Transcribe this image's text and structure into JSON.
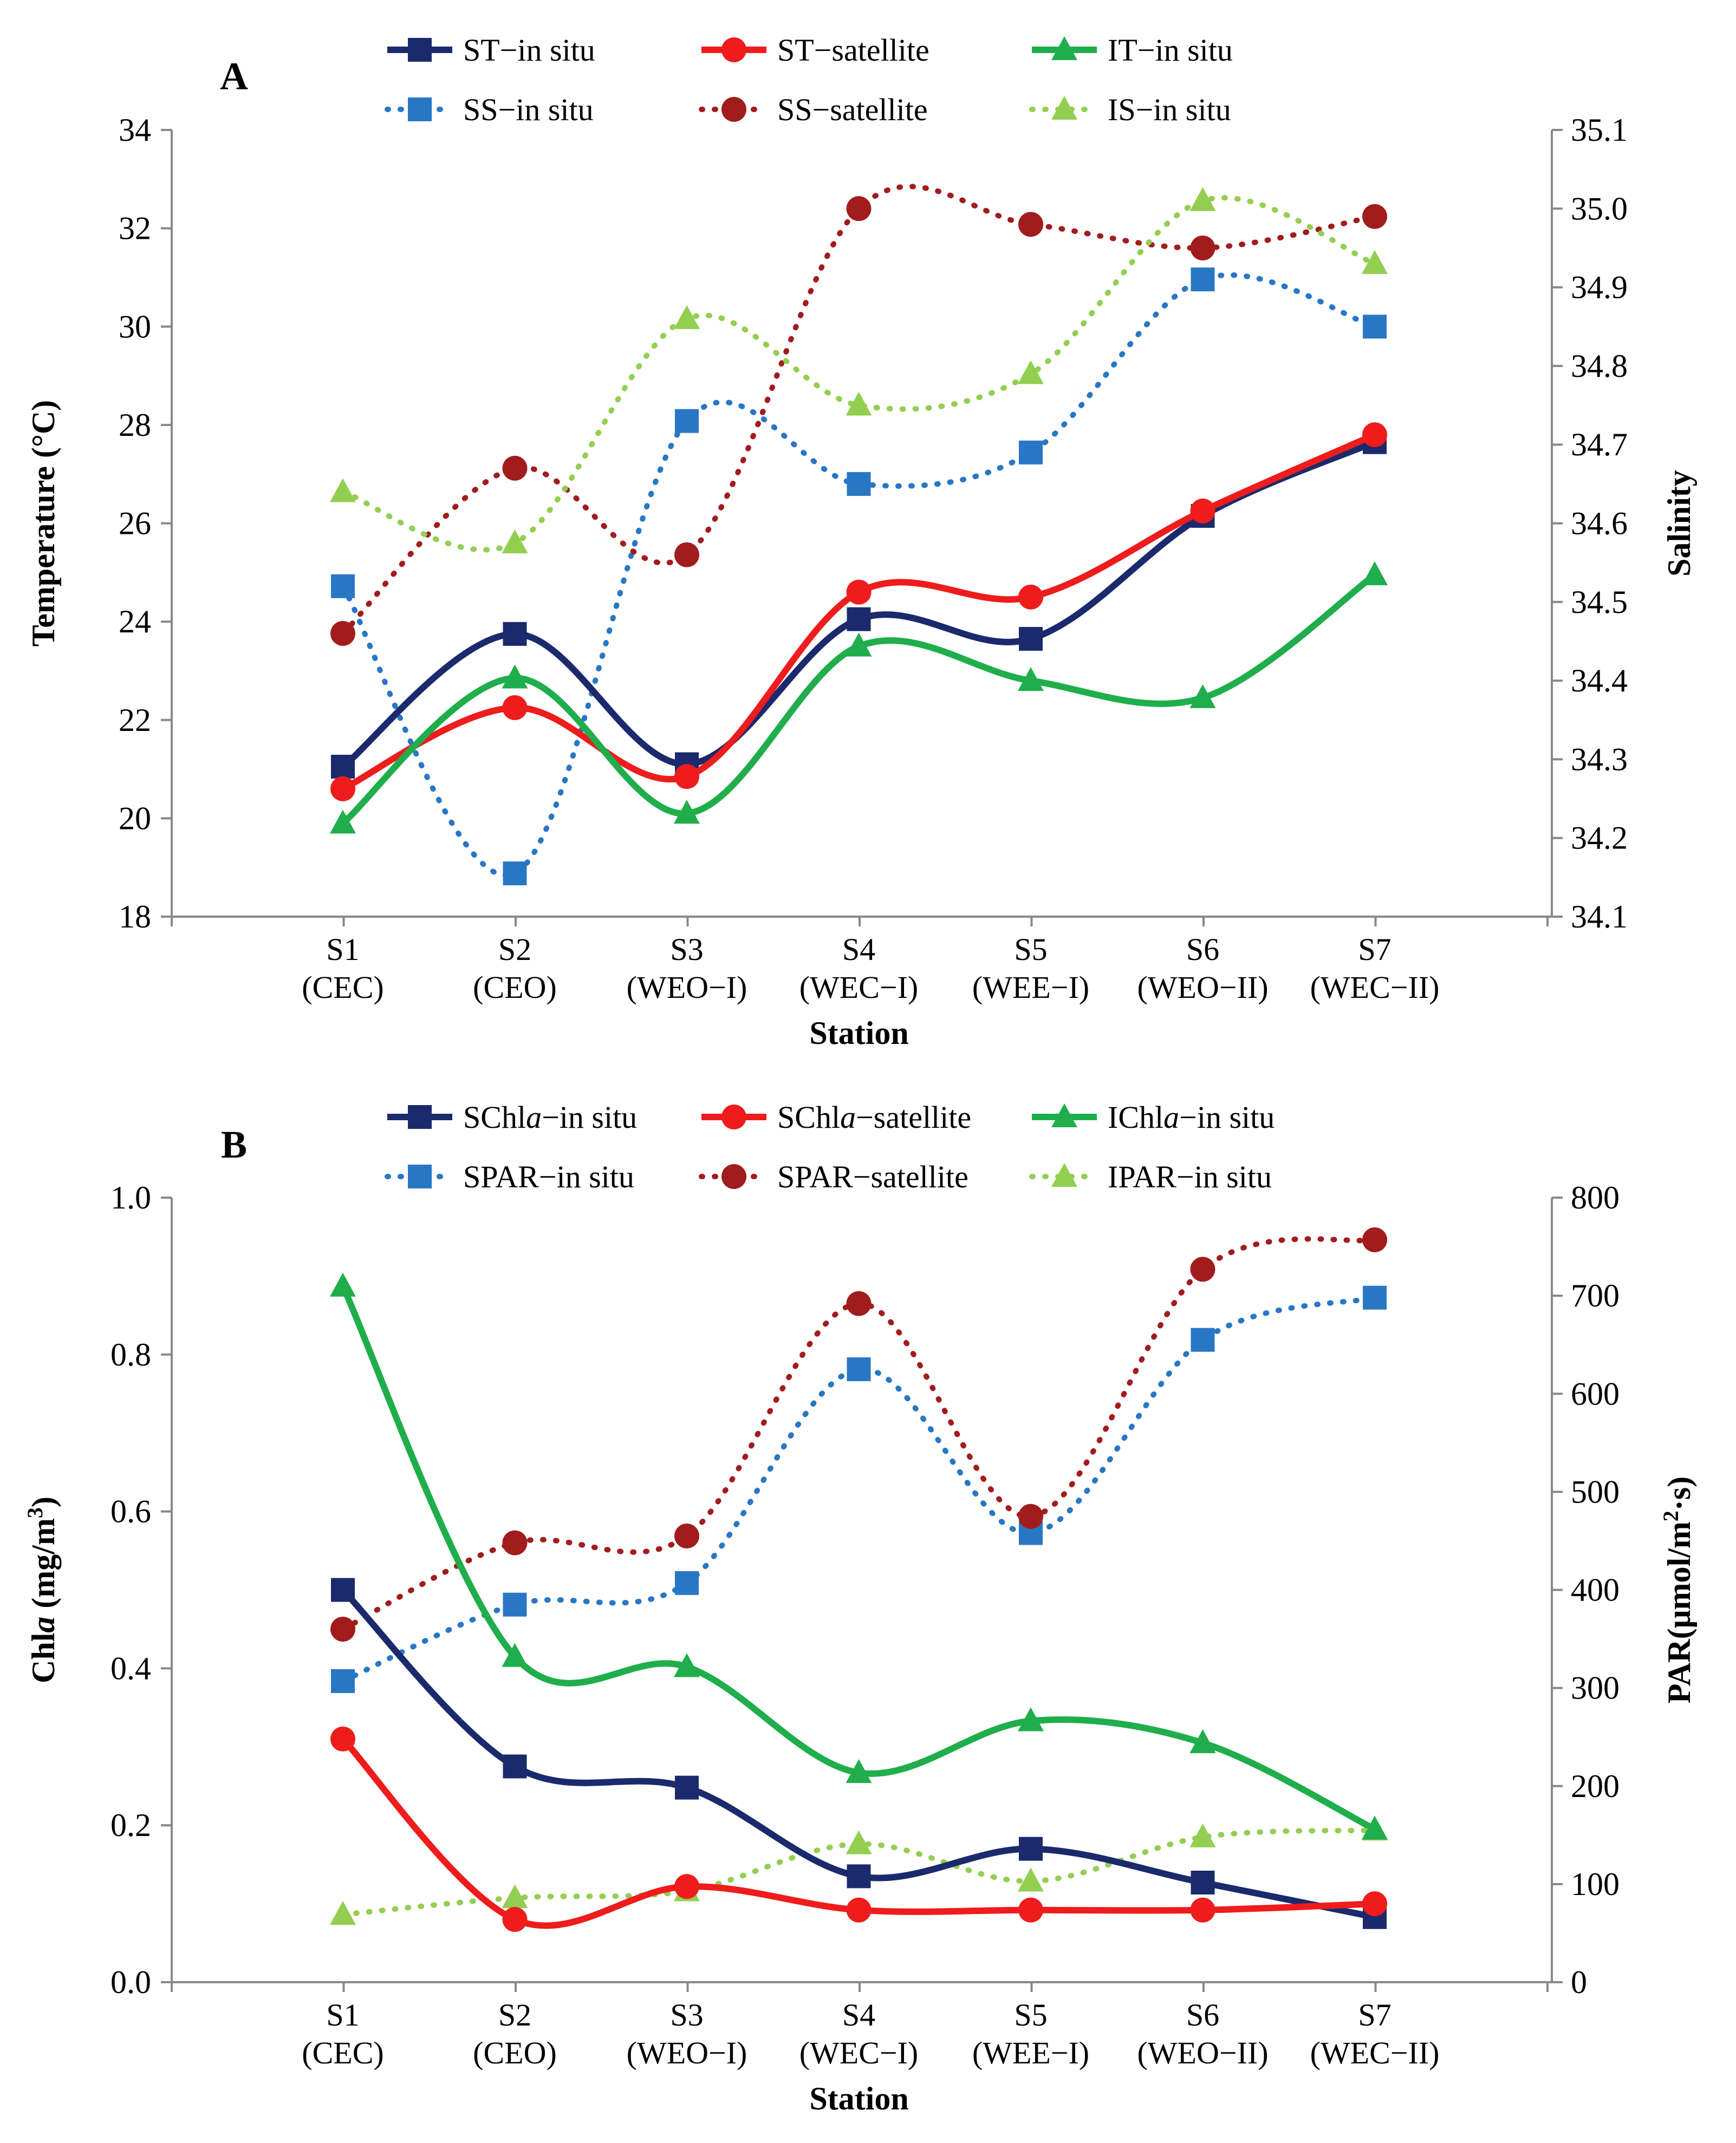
{
  "chart_data": [
    {
      "panel": "A",
      "type": "line",
      "xlabel": "Station",
      "ylabel": "Temperature (°C)",
      "y2label": "Salinity",
      "ylim": [
        18,
        34
      ],
      "yticks": [
        "18",
        "20",
        "22",
        "24",
        "26",
        "28",
        "30",
        "32",
        "34"
      ],
      "y2lim": [
        34.1,
        35.1
      ],
      "y2ticks": [
        "34.1",
        "34.2",
        "34.3",
        "34.4",
        "34.5",
        "34.6",
        "34.7",
        "34.8",
        "34.9",
        "35.0",
        "35.1"
      ],
      "categories": [
        "S1",
        "S2",
        "S3",
        "S4",
        "S5",
        "S6",
        "S7"
      ],
      "subcategories": [
        "(CEC)",
        "(CEO)",
        "(WEO−I)",
        "(WEC−I)",
        "(WEE−I)",
        "(WEO−II)",
        "(WEC−II)"
      ],
      "series": [
        {
          "name": "ST−in situ",
          "axis": "left",
          "style": "solid",
          "marker": "square",
          "color": "#1a2a6c",
          "values": [
            21.05,
            23.75,
            21.1,
            24.05,
            23.65,
            26.15,
            27.65
          ]
        },
        {
          "name": "ST−satellite",
          "axis": "left",
          "style": "solid",
          "marker": "circle",
          "color": "#ee1c1c",
          "values": [
            20.6,
            22.25,
            20.85,
            24.6,
            24.5,
            26.25,
            27.8
          ]
        },
        {
          "name": "IT−in situ",
          "axis": "left",
          "style": "solid",
          "marker": "triangle",
          "color": "#1fae4b",
          "values": [
            19.9,
            22.85,
            20.1,
            23.5,
            22.8,
            22.45,
            24.95
          ]
        },
        {
          "name": "SS−in situ",
          "axis": "right",
          "style": "dotted",
          "marker": "square",
          "color": "#2877c4",
          "values": [
            34.52,
            34.155,
            34.73,
            34.65,
            34.69,
            34.91,
            34.85
          ]
        },
        {
          "name": "SS−satellite",
          "axis": "right",
          "style": "dotted",
          "marker": "circle",
          "color": "#a11c1c",
          "values": [
            34.46,
            34.67,
            34.56,
            35.0,
            34.98,
            34.95,
            34.99
          ]
        },
        {
          "name": "IS−in situ",
          "axis": "right",
          "style": "dotted",
          "marker": "triangle",
          "color": "#92cf50",
          "values": [
            34.64,
            34.575,
            34.86,
            34.75,
            34.79,
            35.01,
            34.93
          ]
        }
      ]
    },
    {
      "panel": "B",
      "type": "line",
      "xlabel": "Station",
      "ylabel": "Chla (mg/m3)",
      "y2label": "PAR(μmol/m2·s)",
      "ylim": [
        0,
        1
      ],
      "yticks": [
        "0.0",
        "0.2",
        "0.4",
        "0.6",
        "0.8",
        "1.0"
      ],
      "y2lim": [
        0,
        800
      ],
      "y2ticks": [
        "0",
        "100",
        "200",
        "300",
        "400",
        "500",
        "600",
        "700",
        "800"
      ],
      "categories": [
        "S1",
        "S2",
        "S3",
        "S4",
        "S5",
        "S6",
        "S7"
      ],
      "subcategories": [
        "(CEC)",
        "(CEO)",
        "(WEO−I)",
        "(WEC−I)",
        "(WEE−I)",
        "(WEO−II)",
        "(WEC−II)"
      ],
      "series": [
        {
          "name": "SChla−in situ",
          "axis": "left",
          "style": "solid",
          "marker": "square",
          "color": "#1a2a6c",
          "values": [
            0.5,
            0.275,
            0.248,
            0.135,
            0.17,
            0.127,
            0.083
          ]
        },
        {
          "name": "SChla−satellite",
          "axis": "left",
          "style": "solid",
          "marker": "circle",
          "color": "#ee1c1c",
          "values": [
            0.31,
            0.08,
            0.122,
            0.092,
            0.092,
            0.092,
            0.1
          ]
        },
        {
          "name": "IChla−in situ",
          "axis": "left",
          "style": "solid",
          "marker": "triangle",
          "color": "#1fae4b",
          "values": [
            0.887,
            0.415,
            0.402,
            0.267,
            0.333,
            0.305,
            0.195
          ]
        },
        {
          "name": "SPAR−in situ",
          "axis": "right",
          "style": "dotted",
          "marker": "square",
          "color": "#2877c4",
          "values": [
            307,
            385,
            407,
            625,
            458,
            655,
            698
          ]
        },
        {
          "name": "SPAR−satellite",
          "axis": "right",
          "style": "dotted",
          "marker": "circle",
          "color": "#a11c1c",
          "values": [
            360,
            448,
            455,
            692,
            475,
            727,
            757
          ]
        },
        {
          "name": "IPAR−in situ",
          "axis": "right",
          "style": "dotted",
          "marker": "triangle",
          "color": "#92cf50",
          "values": [
            69,
            86,
            93,
            141,
            103,
            148,
            155
          ]
        }
      ]
    }
  ]
}
